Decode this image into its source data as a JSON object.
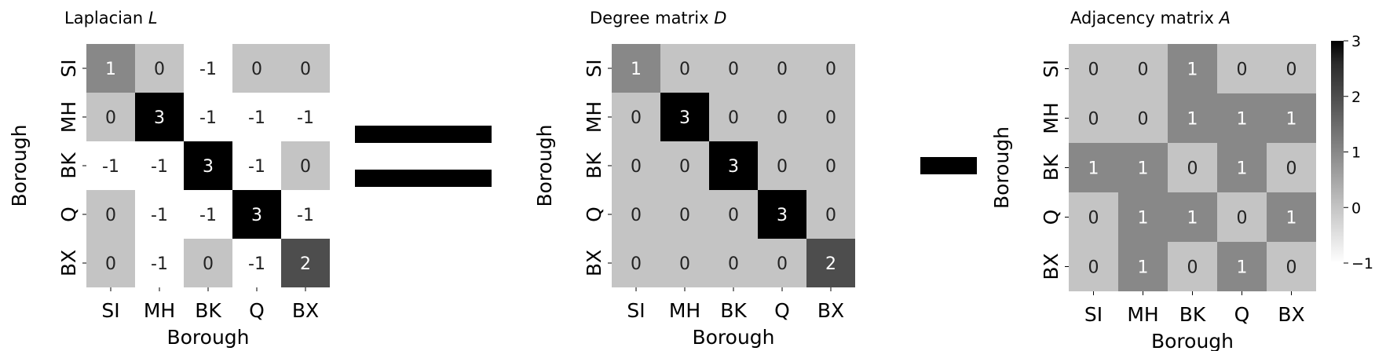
{
  "chart_data": [
    {
      "type": "heatmap",
      "title": "Laplacian",
      "title_symbol": "L",
      "xlabel": "Borough",
      "ylabel": "Borough",
      "x_categories": [
        "SI",
        "MH",
        "BK",
        "Q",
        "BX"
      ],
      "y_categories": [
        "SI",
        "MH",
        "BK",
        "Q",
        "BX"
      ],
      "values": [
        [
          1,
          0,
          -1,
          0,
          0
        ],
        [
          0,
          3,
          -1,
          -1,
          -1
        ],
        [
          -1,
          -1,
          3,
          -1,
          0
        ],
        [
          0,
          -1,
          -1,
          3,
          -1
        ],
        [
          0,
          -1,
          0,
          -1,
          2
        ]
      ]
    },
    {
      "type": "heatmap",
      "title": "Degree matrix",
      "title_symbol": "D",
      "xlabel": "Borough",
      "ylabel": "Borough",
      "x_categories": [
        "SI",
        "MH",
        "BK",
        "Q",
        "BX"
      ],
      "y_categories": [
        "SI",
        "MH",
        "BK",
        "Q",
        "BX"
      ],
      "values": [
        [
          1,
          0,
          0,
          0,
          0
        ],
        [
          0,
          3,
          0,
          0,
          0
        ],
        [
          0,
          0,
          3,
          0,
          0
        ],
        [
          0,
          0,
          0,
          3,
          0
        ],
        [
          0,
          0,
          0,
          0,
          2
        ]
      ]
    },
    {
      "type": "heatmap",
      "title": "Adjacency matrix",
      "title_symbol": "A",
      "xlabel": "Borough",
      "ylabel": "Borough",
      "x_categories": [
        "SI",
        "MH",
        "BK",
        "Q",
        "BX"
      ],
      "y_categories": [
        "SI",
        "MH",
        "BK",
        "Q",
        "BX"
      ],
      "values": [
        [
          0,
          0,
          1,
          0,
          0
        ],
        [
          0,
          0,
          1,
          1,
          1
        ],
        [
          1,
          1,
          0,
          1,
          0
        ],
        [
          0,
          1,
          1,
          0,
          1
        ],
        [
          0,
          1,
          0,
          1,
          0
        ]
      ],
      "colorbar": {
        "range": [
          -1,
          3
        ],
        "ticks": [
          "3",
          "2",
          "1",
          "0",
          "−1"
        ],
        "tick_values": [
          3,
          2,
          1,
          0,
          -1
        ]
      }
    }
  ],
  "colormap": {
    "low": "#ffffff",
    "high": "#000000",
    "vmin": -1,
    "vmax": 3
  },
  "operators": {
    "equals": "equals",
    "minus": "minus"
  }
}
